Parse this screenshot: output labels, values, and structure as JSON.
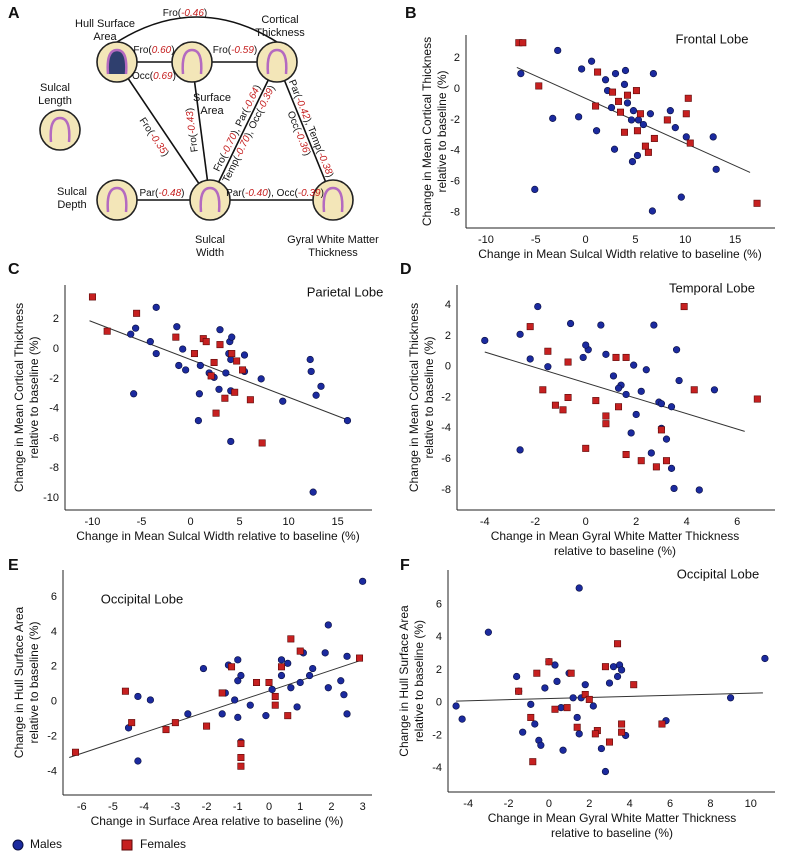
{
  "diagram": {
    "panel_label": "A",
    "nodes": [
      {
        "label": [
          "Hull Surface",
          "Area"
        ]
      },
      {
        "label": [
          "Surface",
          "Area"
        ]
      },
      {
        "label": [
          "Cortical",
          "Thickness"
        ]
      },
      {
        "label": [
          "Sulcal",
          "Length"
        ]
      },
      {
        "label": [
          "Sulcal",
          "Depth"
        ]
      },
      {
        "label": [
          "Sulcal",
          "Width"
        ]
      },
      {
        "label": [
          "Gyral White Matter",
          "Thickness"
        ]
      }
    ],
    "edges": [
      {
        "label": [
          "Fro(-0.46)"
        ]
      },
      {
        "label": [
          "Fro(0.60)",
          "Occ(0.69)"
        ]
      },
      {
        "label": [
          "Fro(-0.59)"
        ]
      },
      {
        "label": [
          "Fro(-0.35)"
        ]
      },
      {
        "label": [
          "Fro(-0.43)"
        ]
      },
      {
        "label": [
          "Fro(-0.70), Par(-0.64)",
          "Temp(-0.70), Occ(-0.39)"
        ]
      },
      {
        "label": [
          "Par(-0.42), Temp(-0.38)",
          "Occ(-0.36)"
        ]
      },
      {
        "label": [
          "Par(-0.48)"
        ]
      },
      {
        "label": [
          "Par(-0.40), Occ(-0.39)"
        ]
      }
    ]
  },
  "chart_data": [
    {
      "type": "scatter",
      "panel_label": "B",
      "title": "Frontal Lobe",
      "x_label": [
        "Change in Mean Sulcal Width relative to baseline (%)"
      ],
      "y_label": [
        "Change in Mean Cortical Thickness",
        "relative to baseline (%)"
      ],
      "xlim": [
        -12,
        19
      ],
      "ylim": [
        -9,
        3.5
      ],
      "xticks": [
        -10,
        -5,
        0,
        5,
        10,
        15
      ],
      "yticks": [
        -8,
        -6,
        -4,
        -2,
        0,
        2
      ],
      "grid": false,
      "series": [
        {
          "name": "Males",
          "color": "#1b2a9e",
          "marker": "circle",
          "x": [
            -6.5,
            -2.8,
            -3.3,
            -5.1,
            -0.7,
            0.6,
            -0.4,
            2.2,
            3.0,
            4.0,
            4.2,
            1.1,
            2.6,
            2.9,
            3.9,
            4.6,
            4.8,
            5.3,
            5.8,
            4.7,
            5.2,
            6.8,
            8.5,
            9.0,
            10.1,
            6.5,
            6.7,
            9.6,
            13.1,
            12.8,
            2.0
          ],
          "y": [
            1.0,
            2.5,
            -1.9,
            -6.5,
            -1.8,
            1.8,
            1.3,
            -0.1,
            1.0,
            1.2,
            -0.9,
            -2.7,
            -1.2,
            -3.9,
            0.3,
            -2.0,
            -1.4,
            -2.0,
            -2.3,
            -4.7,
            -4.3,
            1.0,
            -1.4,
            -2.5,
            -3.1,
            -1.6,
            -7.9,
            -7.0,
            -5.2,
            -3.1,
            0.6
          ]
        },
        {
          "name": "Females",
          "color": "#c62020",
          "marker": "square",
          "x": [
            -6.7,
            -6.3,
            -4.7,
            1.2,
            1.0,
            3.3,
            3.5,
            3.9,
            4.2,
            5.1,
            5.2,
            6.0,
            6.3,
            6.9,
            8.2,
            10.1,
            10.3,
            10.5,
            17.2,
            2.7,
            5.5
          ],
          "y": [
            3.0,
            3.0,
            0.2,
            1.1,
            -1.1,
            -0.8,
            -1.5,
            -2.8,
            -0.4,
            -0.1,
            -2.7,
            -3.7,
            -4.1,
            -3.2,
            -2.0,
            -1.6,
            -0.6,
            -3.5,
            -7.4,
            -0.2,
            -1.6
          ]
        }
      ],
      "trendline": {
        "x": [
          -6.9,
          16.5
        ],
        "y": [
          1.4,
          -5.4
        ]
      }
    },
    {
      "type": "scatter",
      "panel_label": "C",
      "title": "Parietal Lobe",
      "x_label": [
        "Change in Mean Sulcal Width relative to baseline (%)"
      ],
      "y_label": [
        "Change in Mean Cortical Thickness",
        "relative to baseline (%)"
      ],
      "xlim": [
        -12.8,
        18.5
      ],
      "ylim": [
        -10.8,
        4.3
      ],
      "xticks": [
        -10,
        -5,
        0,
        5,
        10,
        15
      ],
      "yticks": [
        -10,
        -8,
        -6,
        -4,
        -2,
        0,
        2
      ],
      "grid": false,
      "series": [
        {
          "name": "Males",
          "color": "#1b2a9e",
          "marker": "circle",
          "x": [
            -6.1,
            -5.6,
            -3.5,
            -4.1,
            -3.5,
            -5.8,
            -1.4,
            -0.8,
            -1.2,
            -0.5,
            1.0,
            1.9,
            2.4,
            0.9,
            0.8,
            3.0,
            4.0,
            3.9,
            4.1,
            3.6,
            2.9,
            4.1,
            4.1,
            4.2,
            5.5,
            7.2,
            9.4,
            12.2,
            12.3,
            13.3,
            12.8,
            16.0,
            12.5,
            5.5
          ],
          "y": [
            1.0,
            1.4,
            2.8,
            0.5,
            -0.3,
            -3.0,
            1.5,
            0.0,
            -1.1,
            -1.4,
            -1.1,
            -1.6,
            -1.9,
            -3.0,
            -4.8,
            1.3,
            0.5,
            -0.3,
            -0.7,
            -1.6,
            -2.7,
            -2.8,
            -6.2,
            0.8,
            -1.5,
            -2.0,
            -3.5,
            -0.7,
            -1.5,
            -2.5,
            -3.1,
            -4.8,
            -9.6,
            -0.4
          ]
        },
        {
          "name": "Females",
          "color": "#c62020",
          "marker": "square",
          "x": [
            -10.0,
            -8.5,
            -5.5,
            -1.5,
            0.4,
            1.3,
            2.4,
            3.0,
            2.1,
            2.6,
            4.2,
            4.5,
            4.7,
            5.3,
            3.5,
            6.1,
            7.3,
            1.6
          ],
          "y": [
            3.5,
            1.2,
            2.4,
            0.8,
            -0.3,
            0.7,
            -0.9,
            0.3,
            -1.8,
            -4.3,
            -0.3,
            -2.9,
            -0.8,
            -1.4,
            -3.3,
            -3.4,
            -6.3,
            0.5
          ]
        }
      ],
      "trendline": {
        "x": [
          -10.3,
          16.2
        ],
        "y": [
          1.9,
          -4.8
        ]
      }
    },
    {
      "type": "scatter",
      "panel_label": "D",
      "title": "Temporal Lobe",
      "x_label": [
        "Change in Mean Gyral White Matter Thickness",
        "relative to baseline (%)"
      ],
      "y_label": [
        "Change in Mean Cortical Thickness",
        "relative to baseline (%)"
      ],
      "xlim": [
        -5.1,
        7.5
      ],
      "ylim": [
        -9.3,
        5.3
      ],
      "xticks": [
        -4,
        -2,
        0,
        2,
        4,
        6
      ],
      "yticks": [
        -8,
        -6,
        -4,
        -2,
        0,
        2,
        4
      ],
      "grid": false,
      "series": [
        {
          "name": "Males",
          "color": "#1b2a9e",
          "marker": "circle",
          "x": [
            -4.0,
            -2.6,
            -1.9,
            -2.2,
            -1.5,
            -2.6,
            -0.6,
            -0.1,
            0.1,
            0.0,
            0.6,
            0.8,
            1.4,
            1.1,
            1.3,
            1.6,
            1.9,
            2.4,
            2.9,
            3.0,
            3.4,
            3.7,
            3.0,
            3.2,
            2.6,
            3.4,
            3.5,
            4.5,
            5.1,
            2.7,
            1.8,
            3.6,
            2.0,
            2.2
          ],
          "y": [
            1.7,
            2.1,
            3.9,
            0.5,
            0.0,
            -5.4,
            2.8,
            0.6,
            1.1,
            1.4,
            2.7,
            0.8,
            -1.2,
            -0.6,
            -1.4,
            -1.8,
            0.1,
            -0.2,
            -2.3,
            -2.4,
            -2.6,
            -0.9,
            -4.0,
            -4.7,
            -5.6,
            -6.6,
            -7.9,
            -8.0,
            -1.5,
            2.7,
            -4.3,
            1.1,
            -3.1,
            -1.6
          ]
        },
        {
          "name": "Females",
          "color": "#c62020",
          "marker": "square",
          "x": [
            -2.2,
            -1.5,
            -0.7,
            -1.2,
            -0.9,
            -1.7,
            -0.7,
            0.4,
            1.2,
            1.6,
            0.8,
            0.8,
            1.6,
            2.2,
            2.8,
            3.0,
            3.2,
            3.9,
            6.8,
            4.3,
            0.0,
            1.3
          ],
          "y": [
            2.6,
            1.0,
            0.3,
            -2.5,
            -2.8,
            -1.5,
            -2.0,
            -2.2,
            0.6,
            0.6,
            -3.7,
            -3.2,
            -5.7,
            -6.1,
            -6.5,
            -4.1,
            -6.1,
            3.9,
            -2.1,
            -1.5,
            -5.3,
            -2.6
          ]
        }
      ],
      "trendline": {
        "x": [
          -4.0,
          6.3
        ],
        "y": [
          0.95,
          -4.2
        ]
      }
    },
    {
      "type": "scatter",
      "panel_label": "E",
      "title": "Occipital Lobe",
      "x_label": [
        "Change in Surface Area relative to baseline (%)"
      ],
      "y_label": [
        "Change in Hull Surface Area",
        "relative to baseline (%)"
      ],
      "xlim": [
        -6.6,
        3.3
      ],
      "ylim": [
        -5.35,
        7.55
      ],
      "xticks": [
        -6,
        -5,
        -4,
        -3,
        -2,
        -1,
        0,
        1,
        2,
        3
      ],
      "yticks": [
        -4,
        -2,
        0,
        2,
        4,
        6
      ],
      "grid": false,
      "series": [
        {
          "name": "Males",
          "color": "#1b2a9e",
          "marker": "circle",
          "x": [
            -4.5,
            -4.2,
            -4.2,
            -3.8,
            -2.6,
            -2.1,
            -1.5,
            -1.3,
            -1.4,
            -1.0,
            -1.0,
            -1.1,
            -1.0,
            -0.9,
            -0.9,
            -0.6,
            -0.1,
            0.1,
            0.4,
            0.4,
            0.6,
            0.7,
            0.9,
            1.1,
            1.4,
            1.9,
            1.8,
            2.3,
            2.4,
            2.5,
            3.0,
            2.5,
            1.3,
            1.0,
            1.9
          ],
          "y": [
            -1.5,
            0.3,
            -3.4,
            0.1,
            -0.7,
            1.9,
            -0.7,
            2.1,
            0.5,
            2.4,
            1.2,
            0.1,
            -0.9,
            -2.3,
            1.5,
            -0.2,
            -0.8,
            0.7,
            1.5,
            2.4,
            2.2,
            0.8,
            -0.3,
            2.8,
            1.9,
            4.4,
            2.8,
            1.2,
            0.4,
            -0.7,
            6.9,
            2.6,
            1.5,
            1.1,
            0.8
          ]
        },
        {
          "name": "Females",
          "color": "#c62020",
          "marker": "square",
          "x": [
            -6.2,
            -4.6,
            -4.4,
            -3.3,
            -3.0,
            -2.0,
            -1.5,
            -1.2,
            -0.9,
            -0.9,
            -0.9,
            -0.4,
            0.0,
            0.2,
            0.4,
            0.6,
            0.7,
            1.0,
            2.9,
            0.2
          ],
          "y": [
            -2.9,
            0.6,
            -1.2,
            -1.6,
            -1.2,
            -1.4,
            0.5,
            2.0,
            -2.4,
            -3.2,
            -3.7,
            1.1,
            1.1,
            -0.2,
            2.0,
            -0.8,
            3.6,
            2.9,
            2.5,
            0.3
          ]
        }
      ],
      "trendline": {
        "x": [
          -6.4,
          3.0
        ],
        "y": [
          -3.2,
          2.4
        ]
      }
    },
    {
      "type": "scatter",
      "panel_label": "F",
      "title": "Occipital Lobe",
      "x_label": [
        "Change in Mean Gyral White Matter Thickness",
        "relative to baseline (%)"
      ],
      "y_label": [
        "Change in Hull Surface Area",
        "relative to baseline (%)"
      ],
      "xlim": [
        -5,
        11.2
      ],
      "ylim": [
        -5.45,
        8.1
      ],
      "xticks": [
        -4,
        -2,
        0,
        2,
        4,
        6,
        8,
        10
      ],
      "yticks": [
        -4,
        -2,
        0,
        2,
        4,
        6
      ],
      "grid": false,
      "series": [
        {
          "name": "Males",
          "color": "#1b2a9e",
          "marker": "circle",
          "x": [
            -4.6,
            -4.3,
            -3.0,
            -1.6,
            -1.5,
            -1.3,
            -0.9,
            -0.7,
            -0.5,
            -0.4,
            -0.2,
            0.0,
            0.3,
            0.4,
            0.6,
            0.7,
            1.0,
            1.2,
            1.4,
            1.5,
            1.5,
            1.6,
            1.8,
            2.2,
            2.6,
            2.8,
            3.0,
            3.2,
            3.4,
            3.5,
            3.6,
            3.8,
            5.8,
            9.0,
            10.7
          ],
          "y": [
            -0.2,
            -1.0,
            4.3,
            1.6,
            0.7,
            -1.8,
            -0.1,
            -1.3,
            -2.3,
            -2.6,
            0.9,
            2.5,
            2.3,
            1.3,
            -0.3,
            -2.9,
            1.8,
            0.3,
            -0.9,
            -1.9,
            7.0,
            0.3,
            1.1,
            -0.2,
            -2.8,
            -4.2,
            1.2,
            2.2,
            1.6,
            2.3,
            2.0,
            -2.0,
            -1.1,
            0.3,
            2.7
          ]
        },
        {
          "name": "Females",
          "color": "#c62020",
          "marker": "square",
          "x": [
            -1.5,
            -0.9,
            -0.8,
            -0.6,
            0.0,
            0.3,
            0.9,
            1.1,
            1.4,
            1.8,
            2.0,
            2.4,
            2.8,
            3.0,
            3.4,
            3.6,
            3.6,
            4.2,
            5.6,
            2.3
          ],
          "y": [
            0.7,
            -0.9,
            -3.6,
            1.8,
            2.5,
            -0.4,
            -0.3,
            1.8,
            -1.5,
            0.5,
            0.2,
            -1.7,
            2.2,
            -2.4,
            3.6,
            -1.3,
            -1.8,
            1.1,
            -1.3,
            -1.9
          ]
        }
      ],
      "trendline": {
        "x": [
          -4.6,
          10.6
        ],
        "y": [
          0.1,
          0.6
        ]
      }
    }
  ]
}
